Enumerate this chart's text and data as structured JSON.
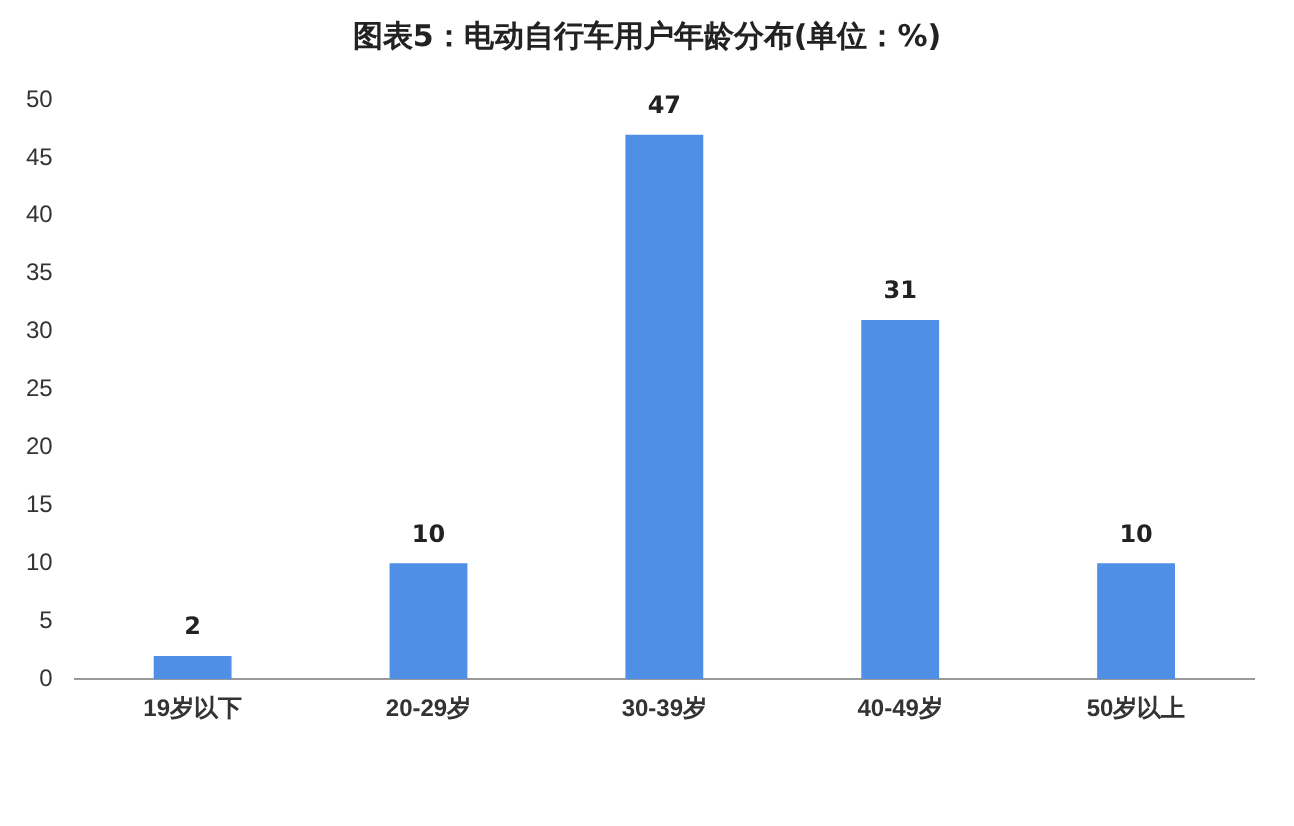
{
  "chart_data": {
    "type": "bar",
    "title": "图表5：电动自行车用户年龄分布(单位：%)",
    "categories": [
      "19岁以下",
      "20-29岁",
      "30-39岁",
      "40-49岁",
      "50岁以上"
    ],
    "values": [
      2,
      10,
      47,
      31,
      10
    ],
    "color": "#4f8fe6",
    "ylim": [
      0,
      50
    ],
    "yticks": [
      0,
      5,
      10,
      15,
      20,
      25,
      30,
      35,
      40,
      45,
      50
    ],
    "grid": false,
    "legend": false,
    "data_labels": true
  }
}
